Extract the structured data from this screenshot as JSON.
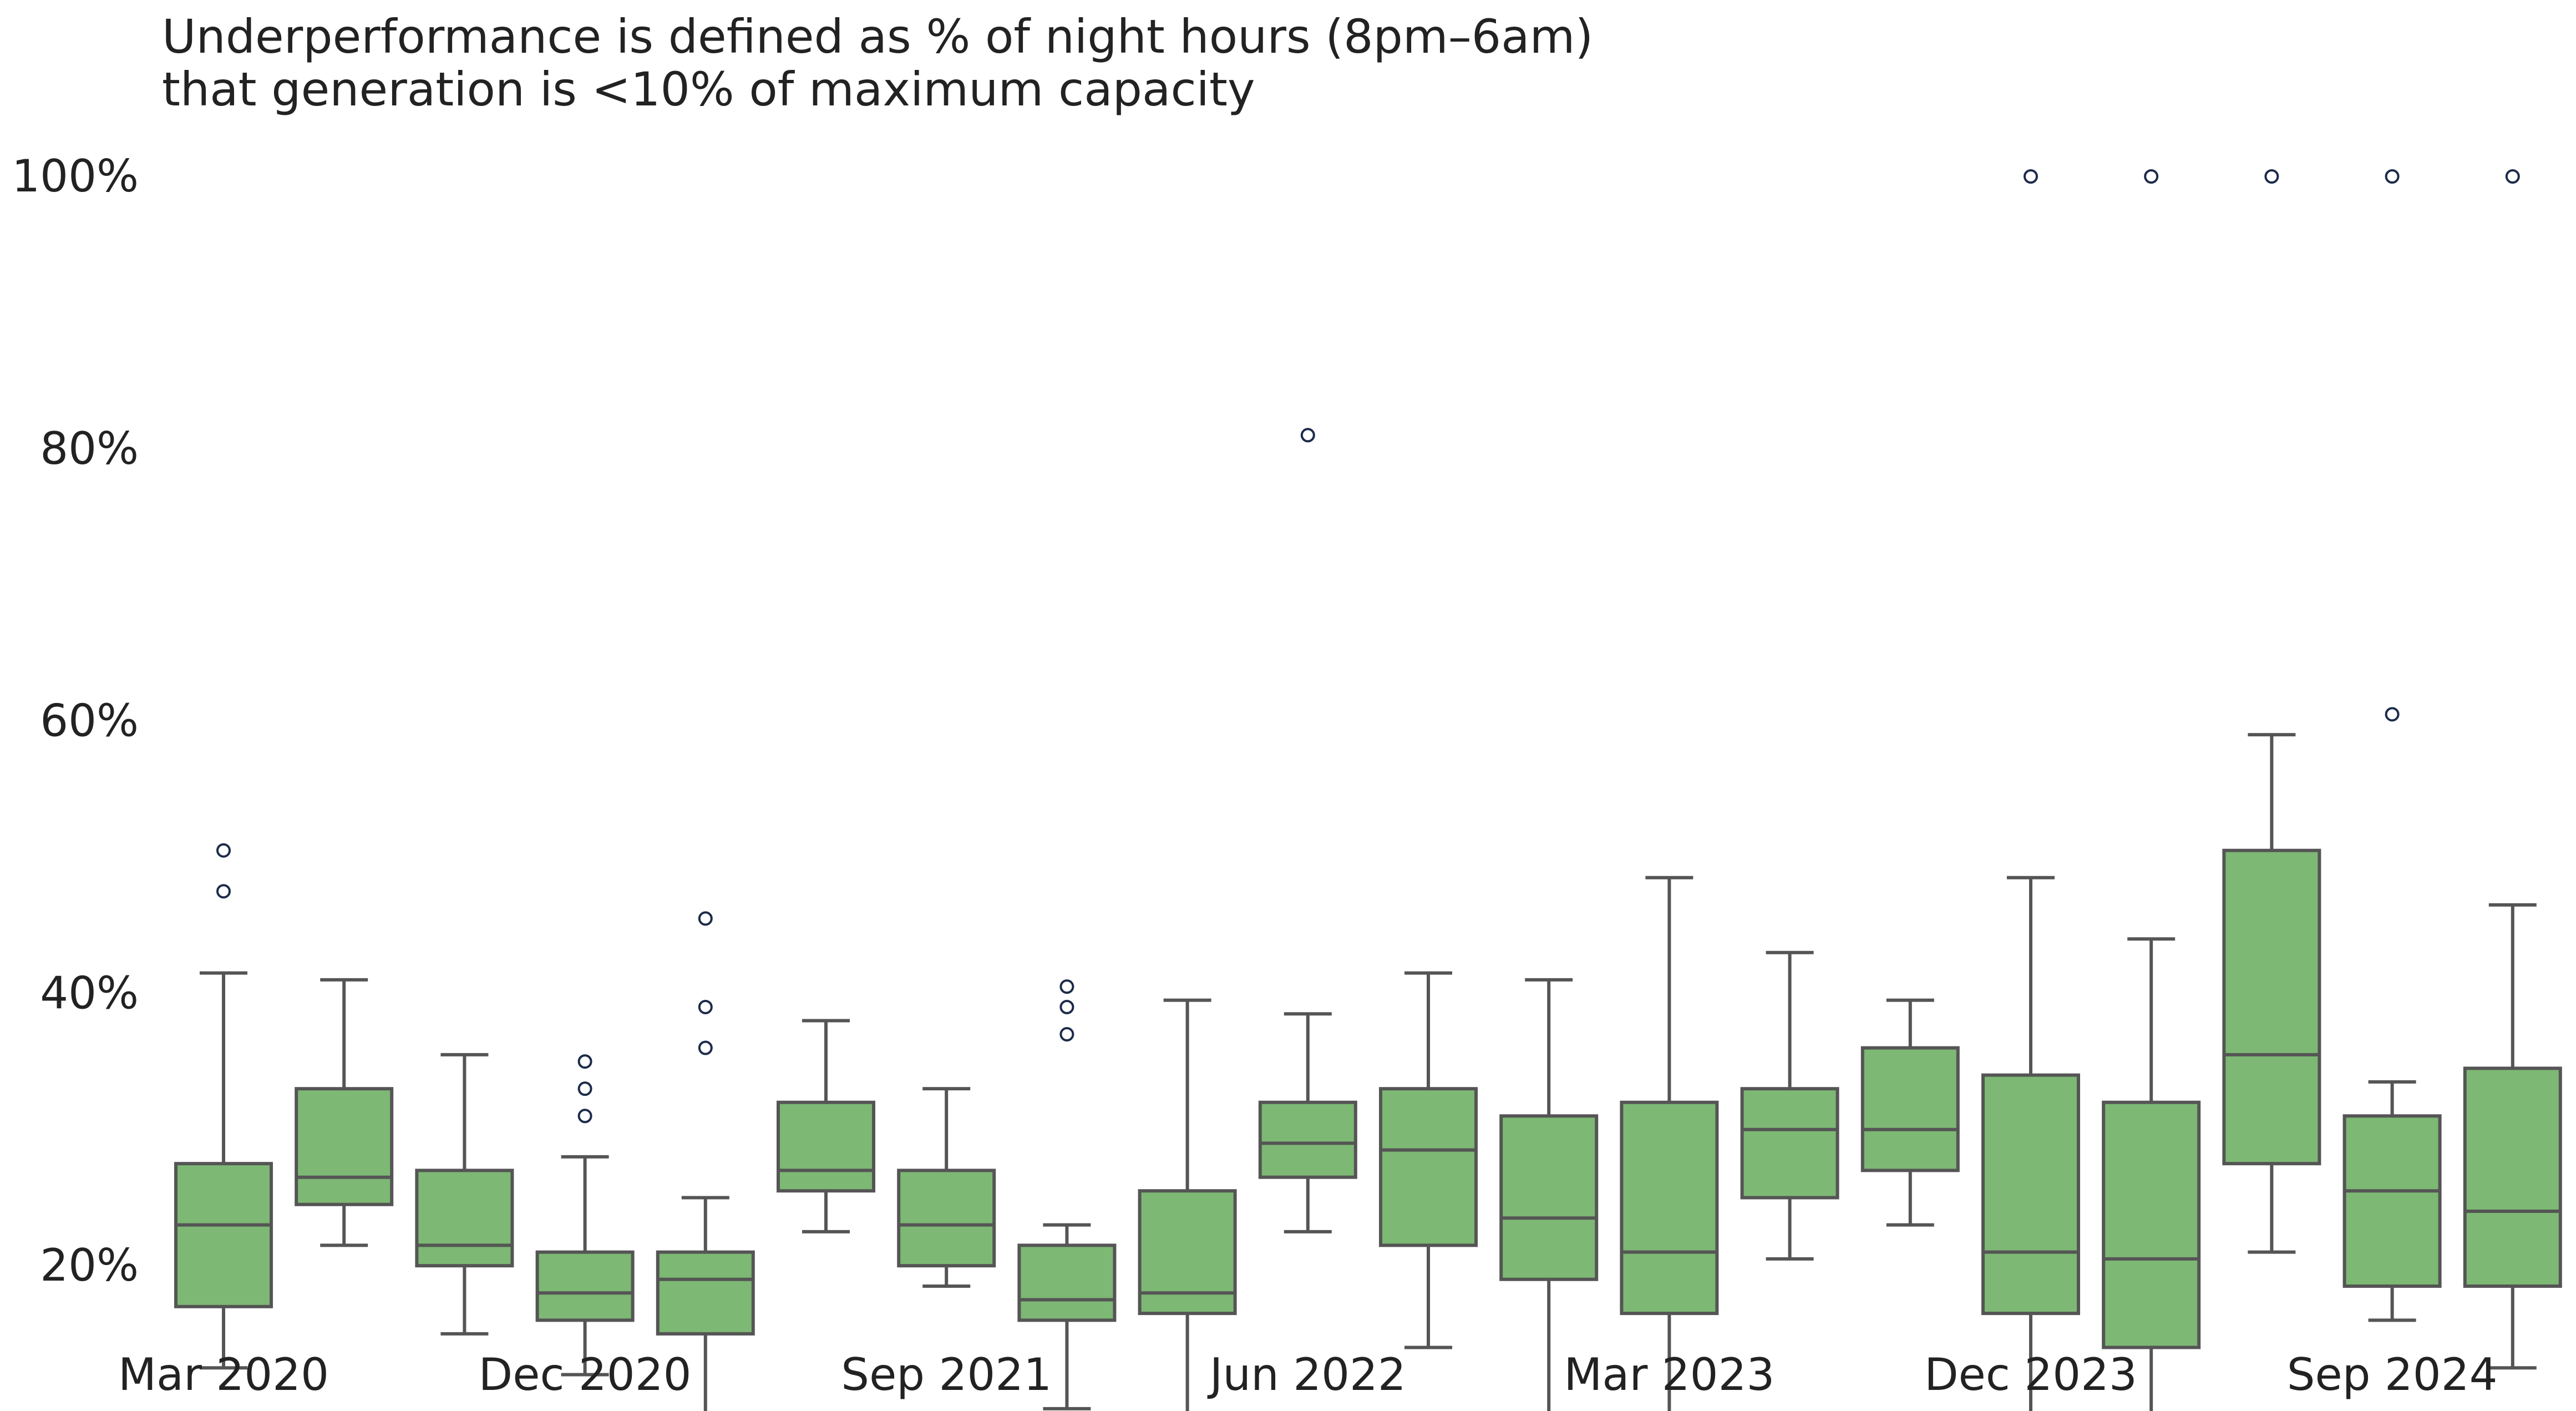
{
  "chart_data": {
    "type": "box",
    "title_lines": [
      "Underperformance is defined as % of night hours (8pm–6am)",
      "that generation is <10% of maximum capacity"
    ],
    "xlabel": "",
    "ylabel": "",
    "ylim": [
      0,
      100
    ],
    "y_ticks": [
      20,
      40,
      60,
      80,
      100
    ],
    "y_tick_labels": [
      "20%",
      "40%",
      "60%",
      "80%",
      "100%"
    ],
    "x_tick_labels": [
      {
        "box_index": 0,
        "label": "Mar 2020"
      },
      {
        "box_index": 3,
        "label": "Dec 2020"
      },
      {
        "box_index": 6,
        "label": "Sep 2021"
      },
      {
        "box_index": 9,
        "label": "Jun 2022"
      },
      {
        "box_index": 12,
        "label": "Mar 2023"
      },
      {
        "box_index": 15,
        "label": "Dec 2023"
      },
      {
        "box_index": 18,
        "label": "Sep 2024"
      }
    ],
    "colors": {
      "box_fill": "#7db874",
      "line": "#555555",
      "outlier_edge": "#1d2b4a"
    },
    "boxes": [
      {
        "period": "Mar 2020",
        "whisker_low": 12.5,
        "q1": 17.0,
        "median": 23.0,
        "q3": 27.5,
        "whisker_high": 41.5,
        "outliers": [
          47.5,
          50.5
        ]
      },
      {
        "period": "Jun 2020",
        "whisker_low": 21.5,
        "q1": 24.5,
        "median": 26.5,
        "q3": 33.0,
        "whisker_high": 41.0,
        "outliers": []
      },
      {
        "period": "Sep 2020",
        "whisker_low": 15.0,
        "q1": 20.0,
        "median": 21.5,
        "q3": 27.0,
        "whisker_high": 35.5,
        "outliers": []
      },
      {
        "period": "Dec 2020",
        "whisker_low": 12.0,
        "q1": 16.0,
        "median": 18.0,
        "q3": 21.0,
        "whisker_high": 28.0,
        "outliers": [
          31.0,
          33.0,
          35.0
        ]
      },
      {
        "period": "Mar 2021",
        "whisker_low": 6.5,
        "q1": 15.0,
        "median": 19.0,
        "q3": 21.0,
        "whisker_high": 25.0,
        "outliers": [
          36.0,
          39.0,
          45.5
        ]
      },
      {
        "period": "Jun 2021",
        "whisker_low": 22.5,
        "q1": 25.5,
        "median": 27.0,
        "q3": 32.0,
        "whisker_high": 38.0,
        "outliers": []
      },
      {
        "period": "Sep 2021",
        "whisker_low": 18.5,
        "q1": 20.0,
        "median": 23.0,
        "q3": 27.0,
        "whisker_high": 33.0,
        "outliers": []
      },
      {
        "period": "Dec 2021",
        "whisker_low": 9.5,
        "q1": 16.0,
        "median": 17.5,
        "q3": 21.5,
        "whisker_high": 23.0,
        "outliers": [
          37.0,
          39.0,
          40.5
        ]
      },
      {
        "period": "Mar 2022",
        "whisker_low": 9.0,
        "q1": 16.5,
        "median": 18.0,
        "q3": 25.5,
        "whisker_high": 39.5,
        "outliers": []
      },
      {
        "period": "Jun 2022",
        "whisker_low": 22.5,
        "q1": 26.5,
        "median": 29.0,
        "q3": 32.0,
        "whisker_high": 38.5,
        "outliers": [
          81.0
        ]
      },
      {
        "period": "Sep 2022",
        "whisker_low": 14.0,
        "q1": 21.5,
        "median": 28.5,
        "q3": 33.0,
        "whisker_high": 41.5,
        "outliers": []
      },
      {
        "period": "Dec 2022",
        "whisker_low": 8.0,
        "q1": 19.0,
        "median": 23.5,
        "q3": 31.0,
        "whisker_high": 41.0,
        "outliers": []
      },
      {
        "period": "Mar 2023",
        "whisker_low": 9.0,
        "q1": 16.5,
        "median": 21.0,
        "q3": 32.0,
        "whisker_high": 48.5,
        "outliers": []
      },
      {
        "period": "Jun 2023",
        "whisker_low": 20.5,
        "q1": 25.0,
        "median": 30.0,
        "q3": 33.0,
        "whisker_high": 43.0,
        "outliers": []
      },
      {
        "period": "Sep 2023",
        "whisker_low": 23.0,
        "q1": 27.0,
        "median": 30.0,
        "q3": 36.0,
        "whisker_high": 39.5,
        "outliers": []
      },
      {
        "period": "Dec 2023",
        "whisker_low": 9.0,
        "q1": 16.5,
        "median": 21.0,
        "q3": 34.0,
        "whisker_high": 48.5,
        "outliers": [
          100.0
        ]
      },
      {
        "period": "Mar 2024",
        "whisker_low": 8.5,
        "q1": 14.0,
        "median": 20.5,
        "q3": 32.0,
        "whisker_high": 44.0,
        "outliers": [
          100.0
        ]
      },
      {
        "period": "Jun 2024",
        "whisker_low": 21.0,
        "q1": 27.5,
        "median": 35.5,
        "q3": 50.5,
        "whisker_high": 59.0,
        "outliers": [
          100.0
        ]
      },
      {
        "period": "Sep 2024",
        "whisker_low": 16.0,
        "q1": 18.5,
        "median": 25.5,
        "q3": 31.0,
        "whisker_high": 33.5,
        "outliers": [
          60.5,
          100.0
        ]
      },
      {
        "period": "Dec 2024",
        "whisker_low": 12.5,
        "q1": 18.5,
        "median": 24.0,
        "q3": 34.5,
        "whisker_high": 46.5,
        "outliers": [
          100.0
        ]
      }
    ]
  }
}
